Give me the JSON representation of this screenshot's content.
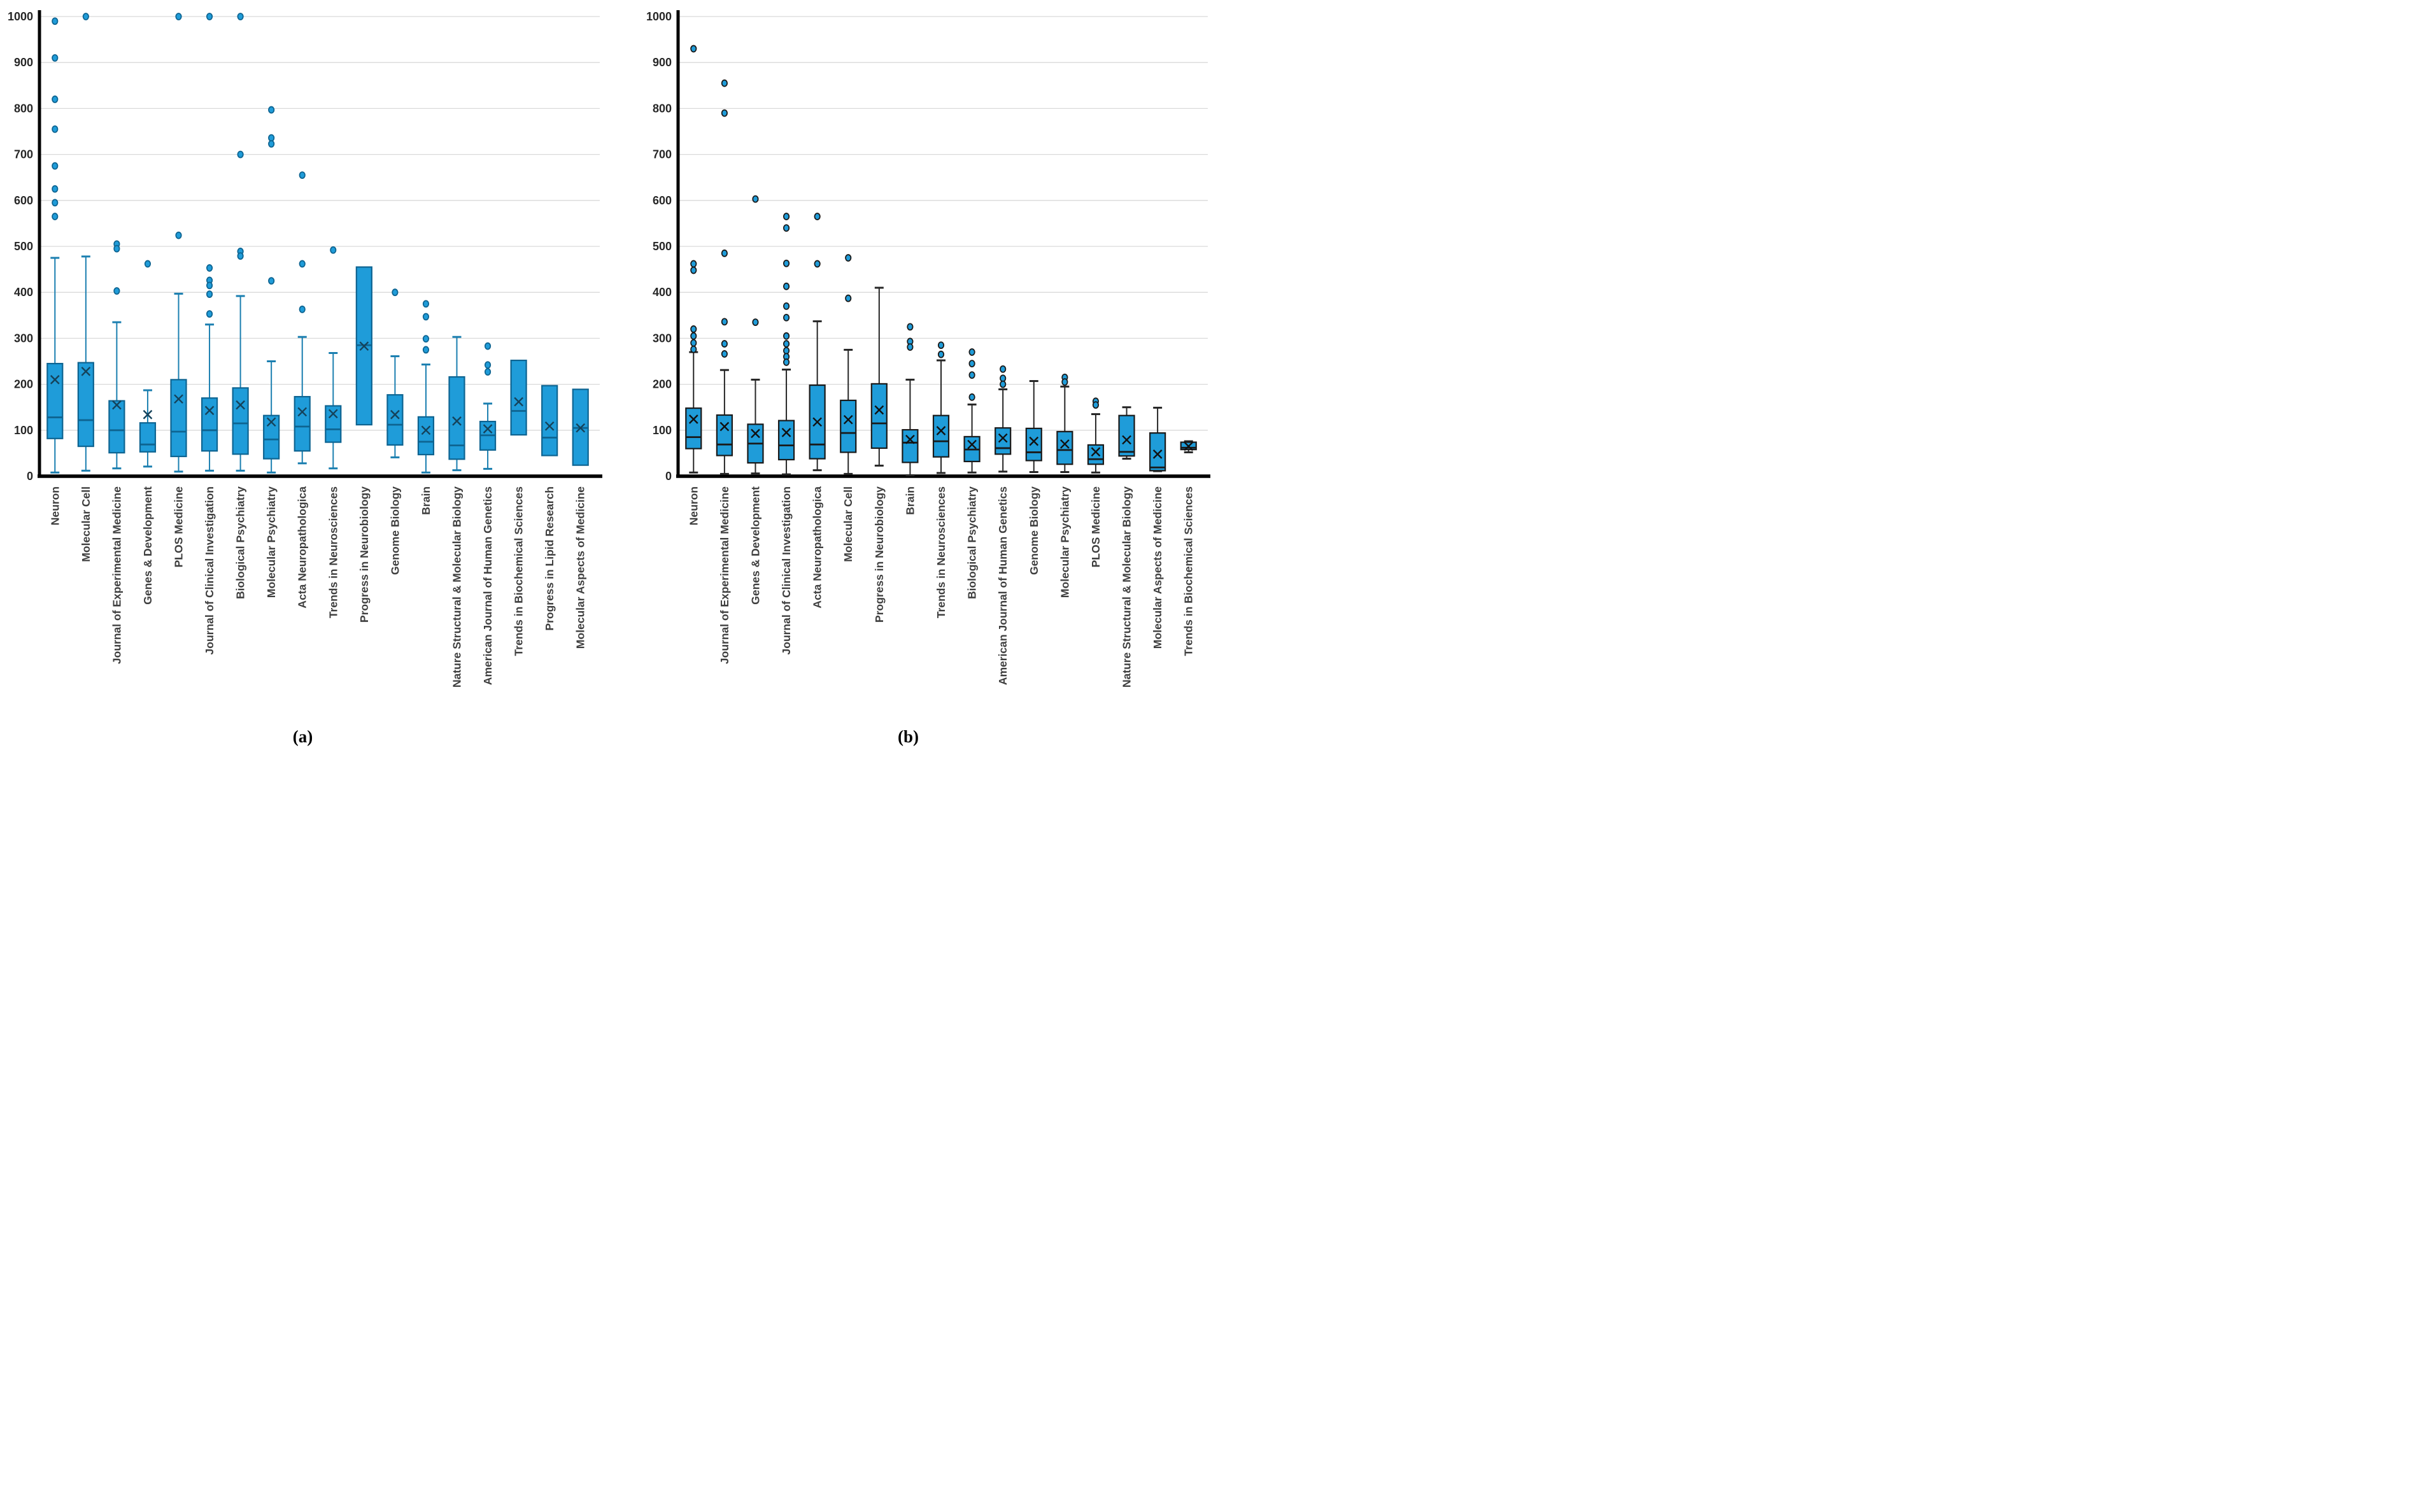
{
  "figure": {
    "caption_a": "(a)",
    "caption_b": "(b)"
  },
  "style": {
    "background": "#ffffff",
    "box_fill": "#1F9CD9",
    "gridline_color": "#D9D9D9",
    "axis_color": "#000000",
    "tick_label_color": "#262626",
    "x_label_color": "#3F3F3F",
    "panel_a": {
      "box_border": "#0E6491",
      "whisker": "#1B7FB0",
      "mean": "#15425A"
    },
    "panel_b": {
      "box_border": "#1A1A1A",
      "whisker": "#262626",
      "mean": "#111111"
    }
  },
  "chart_data": [
    {
      "type": "box",
      "panel": "a",
      "title": "",
      "xlabel": "",
      "ylabel": "",
      "ylim": [
        0,
        1000
      ],
      "ytick_step": 100,
      "grid": true,
      "legend": "none",
      "layout": {
        "plot_left": 62,
        "plot_right": 936,
        "y_base": 748,
        "y_top": 26
      },
      "categories": [
        "Neuron",
        "Molecular Cell",
        "Journal of Experimental Medicine",
        "Genes & Development",
        "PLOS Medicine",
        "Journal of Clinical Investigation",
        "Biological Psychiatry",
        "Molecular Psychiatry",
        "Acta Neuropathologica",
        "Trends in Neurosciences",
        "Progress in Neurobiology",
        "Genome Biology",
        "Brain",
        "Nature Structural & Molecular Biology",
        "American Journal of Human Genetics",
        "Trends in Biochemical Sciences",
        "Progress in Lipid Research",
        "Molecular Aspects of Medicine"
      ],
      "series": [
        {
          "label": "Neuron",
          "whisker_low": 8,
          "q1": 82,
          "median": 128,
          "q3": 245,
          "whisker_high": 475,
          "mean": 210,
          "outliers": [
            990,
            910,
            820,
            755,
            675,
            625,
            595,
            565
          ]
        },
        {
          "label": "Molecular Cell",
          "whisker_low": 12,
          "q1": 65,
          "median": 122,
          "q3": 247,
          "whisker_high": 478,
          "mean": 228,
          "outliers": [
            1000
          ]
        },
        {
          "label": "Journal of Experimental Medicine",
          "whisker_low": 17,
          "q1": 51,
          "median": 100,
          "q3": 164,
          "whisker_high": 335,
          "mean": 155,
          "outliers": [
            505,
            495,
            403
          ]
        },
        {
          "label": "Genes & Development",
          "whisker_low": 21,
          "q1": 53,
          "median": 69,
          "q3": 116,
          "whisker_high": 187,
          "mean": 134,
          "outliers": [
            462
          ]
        },
        {
          "label": "PLOS Medicine",
          "whisker_low": 10,
          "q1": 43,
          "median": 97,
          "q3": 210,
          "whisker_high": 397,
          "mean": 168,
          "outliers": [
            1000,
            524
          ]
        },
        {
          "label": "Journal of Clinical Investigation",
          "whisker_low": 12,
          "q1": 55,
          "median": 100,
          "q3": 170,
          "whisker_high": 330,
          "mean": 143,
          "outliers": [
            1000,
            453,
            426,
            415,
            396,
            353
          ]
        },
        {
          "label": "Biological Psychiatry",
          "whisker_low": 12,
          "q1": 48,
          "median": 115,
          "q3": 192,
          "whisker_high": 392,
          "mean": 155,
          "outliers": [
            1000,
            700,
            489,
            479
          ]
        },
        {
          "label": "Molecular Psychiatry",
          "whisker_low": 8,
          "q1": 38,
          "median": 80,
          "q3": 132,
          "whisker_high": 250,
          "mean": 118,
          "outliers": [
            797,
            736,
            723,
            425
          ]
        },
        {
          "label": "Acta Neuropathologica",
          "whisker_low": 28,
          "q1": 55,
          "median": 108,
          "q3": 173,
          "whisker_high": 303,
          "mean": 140,
          "outliers": [
            655,
            462,
            363
          ]
        },
        {
          "label": "Trends in Neurosciences",
          "whisker_low": 17,
          "q1": 74,
          "median": 102,
          "q3": 153,
          "whisker_high": 268,
          "mean": 136,
          "outliers": [
            492
          ]
        },
        {
          "label": "Progress in Neurobiology",
          "whisker_low": null,
          "q1": 112,
          "median": 285,
          "q3": 455,
          "whisker_high": null,
          "mean": 283,
          "outliers": []
        },
        {
          "label": "Genome Biology",
          "whisker_low": 41,
          "q1": 68,
          "median": 112,
          "q3": 177,
          "whisker_high": 261,
          "mean": 134,
          "outliers": [
            400
          ]
        },
        {
          "label": "Brain",
          "whisker_low": 8,
          "q1": 47,
          "median": 75,
          "q3": 129,
          "whisker_high": 243,
          "mean": 100,
          "outliers": [
            375,
            347,
            299,
            275
          ]
        },
        {
          "label": "Nature Structural & Molecular Biology",
          "whisker_low": 13,
          "q1": 37,
          "median": 67,
          "q3": 216,
          "whisker_high": 303,
          "mean": 120,
          "outliers": []
        },
        {
          "label": "American Journal of Human Genetics",
          "whisker_low": 16,
          "q1": 57,
          "median": 89,
          "q3": 119,
          "whisker_high": 158,
          "mean": 103,
          "outliers": [
            283,
            242,
            227
          ]
        },
        {
          "label": "Trends in Biochemical Sciences",
          "whisker_low": null,
          "q1": 90,
          "median": 142,
          "q3": 252,
          "whisker_high": null,
          "mean": 162,
          "outliers": []
        },
        {
          "label": "Progress in Lipid Research",
          "whisker_low": null,
          "q1": 45,
          "median": 84,
          "q3": 197,
          "whisker_high": null,
          "mean": 109,
          "outliers": []
        },
        {
          "label": "Molecular Aspects of Medicine",
          "whisker_low": null,
          "q1": 24,
          "median": 105,
          "q3": 189,
          "whisker_high": null,
          "mean": 105,
          "outliers": []
        }
      ]
    },
    {
      "type": "box",
      "panel": "b",
      "title": "",
      "xlabel": "",
      "ylabel": "",
      "ylim": [
        0,
        1000
      ],
      "ytick_step": 100,
      "grid": true,
      "legend": "none",
      "layout": {
        "plot_left": 114,
        "plot_right": 940,
        "y_base": 748,
        "y_top": 26
      },
      "categories": [
        "Neuron",
        "Journal of Experimental Medicine",
        "Genes & Development",
        "Journal of Clinical Investigation",
        "Acta Neuropathologica",
        "Molecular Cell",
        "Progress in Neurobiology",
        "Brain",
        "Trends in Neurosciences",
        "Biological Psychiatry",
        "American Journal of Human Genetics",
        "Genome Biology",
        "Molecular Psychiatry",
        "PLOS Medicine",
        "Nature Structural & Molecular Biology",
        "Molecular Aspects of Medicine",
        "Trends in Biochemical Sciences"
      ],
      "series": [
        {
          "label": "Neuron",
          "whisker_low": 8,
          "q1": 60,
          "median": 85,
          "q3": 148,
          "whisker_high": 270,
          "mean": 124,
          "outliers": [
            930,
            462,
            448,
            320,
            305,
            290,
            276
          ]
        },
        {
          "label": "Journal of Experimental Medicine",
          "whisker_low": 5,
          "q1": 45,
          "median": 69,
          "q3": 133,
          "whisker_high": 231,
          "mean": 108,
          "outliers": [
            855,
            790,
            485,
            336,
            288,
            266
          ]
        },
        {
          "label": "Genes & Development",
          "whisker_low": 6,
          "q1": 29,
          "median": 71,
          "q3": 113,
          "whisker_high": 210,
          "mean": 93,
          "outliers": [
            603,
            335
          ]
        },
        {
          "label": "Journal of Clinical Investigation",
          "whisker_low": 4,
          "q1": 36,
          "median": 67,
          "q3": 121,
          "whisker_high": 232,
          "mean": 95,
          "outliers": [
            565,
            540,
            463,
            413,
            370,
            345,
            305,
            288,
            273,
            260,
            248
          ]
        },
        {
          "label": "Acta Neuropathologica",
          "whisker_low": 13,
          "q1": 38,
          "median": 69,
          "q3": 198,
          "whisker_high": 337,
          "mean": 118,
          "outliers": [
            565,
            462
          ]
        },
        {
          "label": "Molecular Cell",
          "whisker_low": 5,
          "q1": 52,
          "median": 94,
          "q3": 165,
          "whisker_high": 275,
          "mean": 123,
          "outliers": [
            475,
            387
          ]
        },
        {
          "label": "Progress in Neurobiology",
          "whisker_low": 23,
          "q1": 61,
          "median": 115,
          "q3": 201,
          "whisker_high": 410,
          "mean": 144,
          "outliers": []
        },
        {
          "label": "Brain",
          "whisker_low": 2,
          "q1": 30,
          "median": 73,
          "q3": 101,
          "whisker_high": 210,
          "mean": 80,
          "outliers": [
            325,
            293,
            281
          ]
        },
        {
          "label": "Trends in Neurosciences",
          "whisker_low": 7,
          "q1": 42,
          "median": 76,
          "q3": 132,
          "whisker_high": 252,
          "mean": 99,
          "outliers": [
            285,
            265
          ]
        },
        {
          "label": "Biological Psychiatry",
          "whisker_low": 8,
          "q1": 32,
          "median": 58,
          "q3": 86,
          "whisker_high": 156,
          "mean": 69,
          "outliers": [
            270,
            245,
            220,
            172
          ]
        },
        {
          "label": "American Journal of Human Genetics",
          "whisker_low": 10,
          "q1": 48,
          "median": 61,
          "q3": 105,
          "whisker_high": 189,
          "mean": 83,
          "outliers": [
            233,
            213,
            200
          ]
        },
        {
          "label": "Genome Biology",
          "whisker_low": 9,
          "q1": 34,
          "median": 52,
          "q3": 104,
          "whisker_high": 207,
          "mean": 76,
          "outliers": []
        },
        {
          "label": "Molecular Psychiatry",
          "whisker_low": 9,
          "q1": 26,
          "median": 57,
          "q3": 97,
          "whisker_high": 195,
          "mean": 70,
          "outliers": [
            215,
            205
          ]
        },
        {
          "label": "PLOS Medicine",
          "whisker_low": 8,
          "q1": 26,
          "median": 37,
          "q3": 68,
          "whisker_high": 135,
          "mean": 53,
          "outliers": [
            163,
            155
          ]
        },
        {
          "label": "Nature Structural & Molecular Biology",
          "whisker_low": 38,
          "q1": 44,
          "median": 53,
          "q3": 132,
          "whisker_high": 150,
          "mean": 79,
          "outliers": []
        },
        {
          "label": "Molecular Aspects of Medicine",
          "whisker_low": 11,
          "q1": 12,
          "median": 19,
          "q3": 94,
          "whisker_high": 149,
          "mean": 48,
          "outliers": []
        },
        {
          "label": "Trends in Biochemical Sciences",
          "whisker_low": 52,
          "q1": 58,
          "median": 62,
          "q3": 74,
          "whisker_high": 76,
          "mean": 65,
          "outliers": []
        }
      ]
    }
  ]
}
